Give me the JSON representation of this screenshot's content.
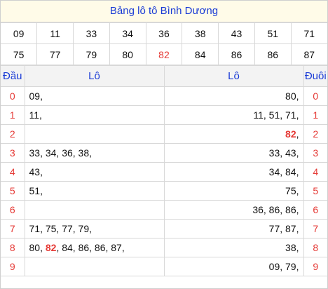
{
  "title": "Bảng lô tô Bình Dương",
  "numbers": [
    [
      "09",
      "11",
      "33",
      "34",
      "36",
      "38",
      "43",
      "51",
      "71"
    ],
    [
      "75",
      "77",
      "79",
      "80",
      "82",
      "84",
      "86",
      "86",
      "87"
    ]
  ],
  "highlight_number": "82",
  "table": {
    "headers": {
      "dau": "Đầu",
      "lo_left": "Lô",
      "lo_right": "Lô",
      "duoi": "Đuôi"
    },
    "rows": [
      {
        "dau": "0",
        "left": [
          {
            "t": "09,"
          }
        ],
        "right": [
          {
            "t": "80,"
          }
        ],
        "duoi": "0"
      },
      {
        "dau": "1",
        "left": [
          {
            "t": "11,"
          }
        ],
        "right": [
          {
            "t": "11, 51, 71,"
          }
        ],
        "duoi": "1"
      },
      {
        "dau": "2",
        "left": [],
        "right": [
          {
            "t": "82",
            "hl": true
          },
          {
            "t": ","
          }
        ],
        "duoi": "2"
      },
      {
        "dau": "3",
        "left": [
          {
            "t": "33, 34, 36, 38,"
          }
        ],
        "right": [
          {
            "t": "33, 43,"
          }
        ],
        "duoi": "3"
      },
      {
        "dau": "4",
        "left": [
          {
            "t": "43,"
          }
        ],
        "right": [
          {
            "t": "34, 84,"
          }
        ],
        "duoi": "4"
      },
      {
        "dau": "5",
        "left": [
          {
            "t": "51,"
          }
        ],
        "right": [
          {
            "t": "75,"
          }
        ],
        "duoi": "5"
      },
      {
        "dau": "6",
        "left": [],
        "right": [
          {
            "t": "36, 86, 86,"
          }
        ],
        "duoi": "6"
      },
      {
        "dau": "7",
        "left": [
          {
            "t": "71, 75, 77, 79,"
          }
        ],
        "right": [
          {
            "t": "77, 87,"
          }
        ],
        "duoi": "7"
      },
      {
        "dau": "8",
        "left": [
          {
            "t": "80, "
          },
          {
            "t": "82",
            "hl": true
          },
          {
            "t": ", 84, 86, 86, 87,"
          }
        ],
        "right": [
          {
            "t": "38,"
          }
        ],
        "duoi": "8"
      },
      {
        "dau": "9",
        "left": [],
        "right": [
          {
            "t": "09, 79,"
          }
        ],
        "duoi": "9"
      }
    ]
  }
}
